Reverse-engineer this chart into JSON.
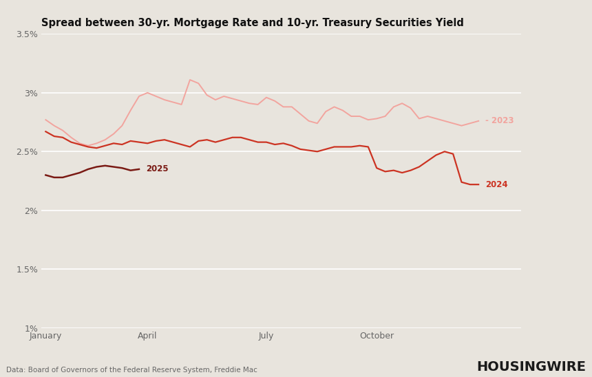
{
  "title": "Spread between 30-yr. Mortgage Rate and 10-yr. Treasury Securities Yield",
  "background_color": "#e8e4dd",
  "plot_bg_color": "#e8e4dd",
  "source_text": "Data: Board of Governors of the Federal Reserve System, Freddie Mac",
  "housingwire_text": "HOUSINGWIRE",
  "ylim": [
    1.0,
    3.5
  ],
  "yticks": [
    1.0,
    1.5,
    2.0,
    2.5,
    3.0,
    3.5
  ],
  "ytick_labels": [
    "1%",
    "1.5%",
    "2%",
    "2.5%",
    "3%",
    "3.5%"
  ],
  "xtick_labels": [
    "January",
    "April",
    "July",
    "October"
  ],
  "xtick_positions": [
    0,
    12,
    26,
    39
  ],
  "n_weeks": 52,
  "line_2023_color": "#f2a49e",
  "line_2024_color": "#cc3322",
  "line_2025_color": "#7a1a14",
  "label_2023": "2023",
  "label_2024": "2024",
  "label_2025": "2025",
  "data_2023": [
    2.77,
    2.72,
    2.68,
    2.62,
    2.57,
    2.55,
    2.57,
    2.6,
    2.65,
    2.72,
    2.85,
    2.97,
    3.0,
    2.97,
    2.94,
    2.92,
    2.9,
    3.11,
    3.08,
    2.98,
    2.94,
    2.97,
    2.95,
    2.93,
    2.91,
    2.9,
    2.96,
    2.93,
    2.88,
    2.88,
    2.82,
    2.76,
    2.74,
    2.84,
    2.88,
    2.85,
    2.8,
    2.8,
    2.77,
    2.78,
    2.8,
    2.88,
    2.91,
    2.87,
    2.78,
    2.8,
    2.78,
    2.76,
    2.74,
    2.72,
    2.74,
    2.76
  ],
  "data_2024": [
    2.67,
    2.63,
    2.62,
    2.58,
    2.56,
    2.54,
    2.53,
    2.55,
    2.57,
    2.56,
    2.59,
    2.58,
    2.57,
    2.59,
    2.6,
    2.58,
    2.56,
    2.54,
    2.59,
    2.6,
    2.58,
    2.6,
    2.62,
    2.62,
    2.6,
    2.58,
    2.58,
    2.56,
    2.57,
    2.55,
    2.52,
    2.51,
    2.5,
    2.52,
    2.54,
    2.54,
    2.54,
    2.55,
    2.54,
    2.36,
    2.33,
    2.34,
    2.32,
    2.34,
    2.37,
    2.42,
    2.47,
    2.5,
    2.48,
    2.24,
    2.22,
    2.22
  ],
  "data_2025": [
    2.3,
    2.28,
    2.28,
    2.3,
    2.32,
    2.35,
    2.37,
    2.38,
    2.37,
    2.36,
    2.34,
    2.35
  ]
}
